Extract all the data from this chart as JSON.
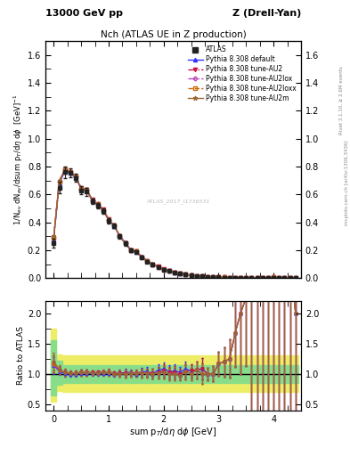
{
  "title_top": "13000 GeV pp",
  "title_top_right": "Z (Drell-Yan)",
  "plot_title": "Nch (ATLAS UE in Z production)",
  "ylabel_main": "1/N$_{ev}$ dN$_{ev}$/dsum p$_T$/d$\\eta$ d$\\phi$  [GeV]$^{-1}$",
  "ylabel_ratio": "Ratio to ATLAS",
  "xlabel": "sum p$_T$/d$\\eta$ d$\\phi$ [GeV]",
  "right_label1": "Rivet 3.1.10, ≥ 2.6M events",
  "right_label2": "mcplots.cern.ch [arXiv:1306.3436]",
  "watermark": "ATLAS_2017_I1736531",
  "ylim_main": [
    0.0,
    1.7
  ],
  "ylim_ratio": [
    0.4,
    2.2
  ],
  "xlim": [
    -0.15,
    4.5
  ],
  "x_data": [
    0.0,
    0.1,
    0.2,
    0.3,
    0.4,
    0.5,
    0.6,
    0.7,
    0.8,
    0.9,
    1.0,
    1.1,
    1.2,
    1.3,
    1.4,
    1.5,
    1.6,
    1.7,
    1.8,
    1.9,
    2.0,
    2.1,
    2.2,
    2.3,
    2.4,
    2.5,
    2.6,
    2.7,
    2.8,
    2.9,
    3.0,
    3.1,
    3.2,
    3.3,
    3.4,
    3.5,
    3.6,
    3.7,
    3.8,
    3.9,
    4.0,
    4.1,
    4.2,
    4.3,
    4.4
  ],
  "atlas_y": [
    0.25,
    0.65,
    0.76,
    0.755,
    0.72,
    0.63,
    0.62,
    0.55,
    0.52,
    0.48,
    0.41,
    0.375,
    0.3,
    0.25,
    0.2,
    0.19,
    0.15,
    0.12,
    0.1,
    0.08,
    0.06,
    0.05,
    0.04,
    0.035,
    0.025,
    0.02,
    0.015,
    0.012,
    0.01,
    0.008,
    0.006,
    0.005,
    0.004,
    0.003,
    0.002,
    0.002,
    0.001,
    0.001,
    0.001,
    0.001,
    0.001,
    0.001,
    0.001,
    0.001,
    0.001
  ],
  "atlas_yerr": [
    0.03,
    0.04,
    0.04,
    0.03,
    0.03,
    0.03,
    0.03,
    0.02,
    0.02,
    0.02,
    0.02,
    0.015,
    0.015,
    0.015,
    0.01,
    0.01,
    0.01,
    0.008,
    0.008,
    0.007,
    0.006,
    0.005,
    0.004,
    0.003,
    0.003,
    0.002,
    0.002,
    0.002,
    0.001,
    0.001,
    0.001,
    0.001,
    0.001,
    0.001,
    0.001,
    0.001,
    0.001,
    0.001,
    0.001,
    0.001,
    0.001,
    0.001,
    0.001,
    0.001,
    0.001
  ],
  "pythia_default_y": [
    0.285,
    0.68,
    0.765,
    0.755,
    0.72,
    0.64,
    0.63,
    0.555,
    0.525,
    0.485,
    0.415,
    0.375,
    0.305,
    0.255,
    0.205,
    0.19,
    0.155,
    0.125,
    0.1,
    0.085,
    0.065,
    0.052,
    0.042,
    0.036,
    0.027,
    0.021,
    0.016,
    0.013,
    0.01,
    0.008,
    0.007,
    0.006,
    0.005,
    0.005,
    0.004,
    0.0045,
    0.004,
    0.004,
    0.004,
    0.004,
    0.005,
    0.004,
    0.004,
    0.003,
    0.002
  ],
  "pythia_AU2_y": [
    0.29,
    0.69,
    0.78,
    0.762,
    0.73,
    0.645,
    0.635,
    0.562,
    0.532,
    0.492,
    0.422,
    0.378,
    0.302,
    0.252,
    0.202,
    0.192,
    0.152,
    0.122,
    0.101,
    0.082,
    0.063,
    0.051,
    0.041,
    0.035,
    0.026,
    0.021,
    0.016,
    0.013,
    0.01,
    0.008,
    0.007,
    0.006,
    0.005,
    0.005,
    0.004,
    0.0045,
    0.004,
    0.004,
    0.004,
    0.004,
    0.006,
    0.005,
    0.004,
    0.003,
    0.002
  ],
  "pythia_AU2lox_y": [
    0.29,
    0.69,
    0.778,
    0.76,
    0.728,
    0.643,
    0.633,
    0.56,
    0.53,
    0.49,
    0.42,
    0.376,
    0.301,
    0.251,
    0.201,
    0.191,
    0.151,
    0.121,
    0.1,
    0.081,
    0.062,
    0.05,
    0.04,
    0.034,
    0.026,
    0.02,
    0.016,
    0.012,
    0.01,
    0.008,
    0.007,
    0.006,
    0.005,
    0.005,
    0.004,
    0.0045,
    0.004,
    0.004,
    0.004,
    0.004,
    0.006,
    0.005,
    0.004,
    0.003,
    0.002
  ],
  "pythia_AU2loxx_y": [
    0.29,
    0.69,
    0.778,
    0.76,
    0.728,
    0.643,
    0.633,
    0.56,
    0.53,
    0.49,
    0.42,
    0.376,
    0.301,
    0.251,
    0.201,
    0.191,
    0.151,
    0.121,
    0.1,
    0.081,
    0.062,
    0.05,
    0.04,
    0.034,
    0.026,
    0.02,
    0.016,
    0.012,
    0.01,
    0.008,
    0.007,
    0.006,
    0.005,
    0.005,
    0.004,
    0.0045,
    0.004,
    0.004,
    0.004,
    0.004,
    0.006,
    0.005,
    0.004,
    0.003,
    0.002
  ],
  "pythia_AU2m_y": [
    0.3,
    0.7,
    0.775,
    0.762,
    0.73,
    0.643,
    0.633,
    0.56,
    0.53,
    0.49,
    0.42,
    0.376,
    0.301,
    0.251,
    0.201,
    0.191,
    0.151,
    0.121,
    0.1,
    0.081,
    0.062,
    0.05,
    0.04,
    0.034,
    0.026,
    0.02,
    0.016,
    0.012,
    0.01,
    0.008,
    0.007,
    0.006,
    0.005,
    0.005,
    0.004,
    0.0045,
    0.004,
    0.004,
    0.004,
    0.004,
    0.006,
    0.005,
    0.004,
    0.003,
    0.002
  ],
  "color_atlas": "#222222",
  "color_default": "#3333ff",
  "color_AU2": "#cc1144",
  "color_AU2lox": "#bb44bb",
  "color_AU2loxx": "#cc6600",
  "color_AU2m": "#996633",
  "band_green": "#88dd88",
  "band_yellow": "#eeee66",
  "yticks_main": [
    0.0,
    0.2,
    0.4,
    0.6,
    0.8,
    1.0,
    1.2,
    1.4,
    1.6
  ],
  "yticks_ratio": [
    0.5,
    1.0,
    1.5,
    2.0
  ],
  "xticks": [
    0,
    1,
    2,
    3,
    4
  ]
}
